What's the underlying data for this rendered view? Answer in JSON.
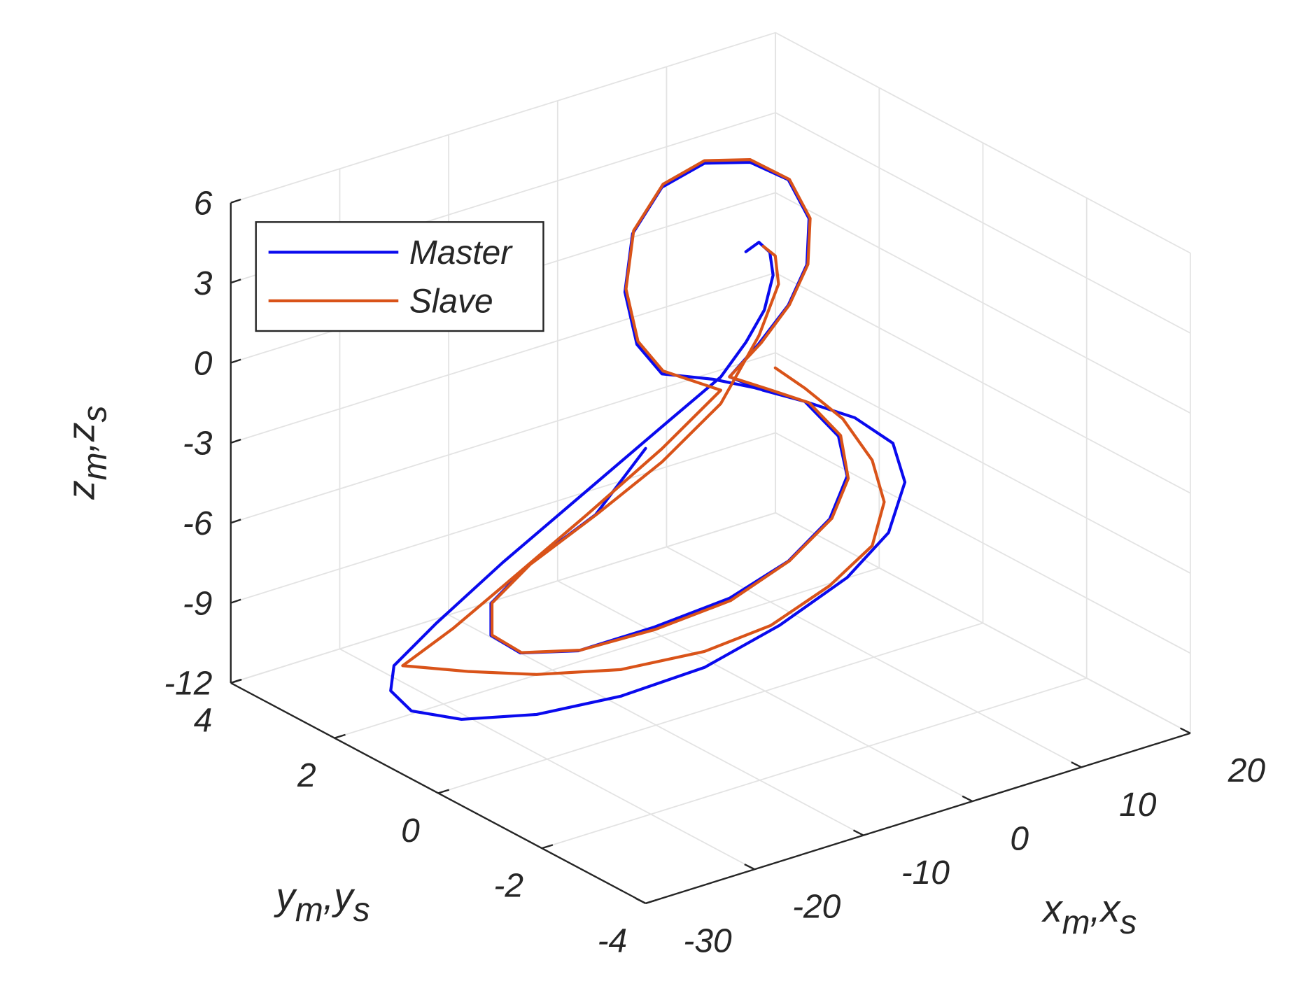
{
  "chart_data": {
    "type": "line3d",
    "xlabel": [
      "x",
      "m",
      ",x",
      "s"
    ],
    "ylabel": [
      "y",
      "m",
      ",y",
      "s"
    ],
    "zlabel": [
      "z",
      "m",
      ",z",
      "s"
    ],
    "xlim": [
      -30,
      20
    ],
    "ylim": [
      -4,
      4
    ],
    "zlim": [
      -12,
      6
    ],
    "xticks": [
      -30,
      -20,
      -10,
      0,
      10,
      20
    ],
    "yticks": [
      -4,
      -2,
      0,
      2,
      4
    ],
    "zticks": [
      -12,
      -9,
      -6,
      -3,
      0,
      3,
      6
    ],
    "grid": true,
    "legend": "top-left",
    "series": [
      {
        "name": "Master",
        "color": "#0a0aee",
        "x": [
          4.9,
          6.1,
          7.1,
          7.4,
          6.6,
          4.9,
          2.6,
          -2.0,
          -9.7,
          -17.4,
          -23.5,
          -27.4,
          -27.7,
          -25.8,
          -21.2,
          -14.3,
          -6.6,
          1.1,
          8.0,
          14.2,
          18.0,
          19.5,
          18.4,
          14.9,
          10.3,
          5.7,
          1.9,
          -2.8,
          -5.1,
          -6.2,
          -5.5,
          -2.8,
          1.1,
          5.3,
          8.8,
          10.7,
          10.5,
          8.8,
          6.1,
          3.4,
          6.5,
          10.3,
          13.4,
          14.2,
          12.6,
          8.8,
          3.4,
          -3.5,
          -10.5,
          -15.8,
          -18.5,
          -18.5,
          -15.1,
          -8.9,
          -4.3
        ],
        "y": [
          1.4,
          1.4,
          1.4,
          1.4,
          1.4,
          1.4,
          1.4,
          1.4,
          1.4,
          1.4,
          1.4,
          1.4,
          1.4,
          1.4,
          1.4,
          1.4,
          1.4,
          1.4,
          1.4,
          1.4,
          1.4,
          1.4,
          1.4,
          1.4,
          1.4,
          1.4,
          1.4,
          1.4,
          1.4,
          1.4,
          1.4,
          1.4,
          1.4,
          1.4,
          1.4,
          1.4,
          1.4,
          1.4,
          1.4,
          1.4,
          1.4,
          1.4,
          1.4,
          1.4,
          1.4,
          1.4,
          1.4,
          1.4,
          1.4,
          1.4,
          1.4,
          1.4,
          1.4,
          1.4,
          1.4
        ],
        "z": [
          2.4,
          2.6,
          2.1,
          1.2,
          0.0,
          -1.0,
          -2.0,
          -3.0,
          -4.7,
          -6.4,
          -7.9,
          -9.0,
          -9.9,
          -10.9,
          -11.8,
          -12.5,
          -12.8,
          -12.7,
          -12.0,
          -11.0,
          -9.8,
          -8.1,
          -6.5,
          -5.1,
          -3.9,
          -2.8,
          -2.0,
          -1.2,
          0.2,
          2.3,
          4.4,
          5.8,
          6.2,
          5.7,
          4.6,
          2.9,
          1.2,
          -0.1,
          -1.2,
          -2.1,
          -3.0,
          -3.9,
          -5.6,
          -7.2,
          -8.6,
          -9.7,
          -10.4,
          -10.6,
          -10.6,
          -10.0,
          -9.0,
          -7.8,
          -6.8,
          -5.7,
          -3.8
        ]
      },
      {
        "name": "Slave",
        "color": "#d95319",
        "x": [
          7.6,
          10.3,
          13.8,
          16.5,
          17.6,
          16.5,
          12.6,
          7.2,
          1.1,
          -6.6,
          -14.3,
          -20.5,
          -26.6,
          -22.0,
          -17.4,
          -9.7,
          -2.8,
          2.6,
          -2.7,
          -5.0,
          -6.1,
          -5.4,
          -2.7,
          1.1,
          5.3,
          8.9,
          10.8,
          10.6,
          8.9,
          6.3,
          3.4,
          6.9,
          10.7,
          13.6,
          14.3,
          12.8,
          8.9,
          3.5,
          -3.4,
          -10.3,
          -15.7,
          -18.4,
          -18.4,
          -14.9,
          -8.8,
          -2.8,
          2.6,
          6.1,
          7.9,
          7.6,
          6.5
        ],
        "y": [
          1.4,
          1.4,
          1.4,
          1.4,
          1.4,
          1.4,
          1.4,
          1.4,
          1.4,
          1.4,
          1.4,
          1.4,
          1.4,
          1.4,
          1.4,
          1.4,
          1.4,
          1.4,
          1.4,
          1.4,
          1.4,
          1.4,
          1.4,
          1.4,
          1.4,
          1.4,
          1.4,
          1.4,
          1.4,
          1.4,
          1.4,
          1.4,
          1.4,
          1.4,
          1.4,
          1.4,
          1.4,
          1.4,
          1.4,
          1.4,
          1.4,
          1.4,
          1.4,
          1.4,
          1.4,
          1.4,
          1.4,
          1.4,
          1.4,
          1.4,
          1.4
        ],
        "z": [
          -2.3,
          -3.4,
          -5.0,
          -6.9,
          -8.6,
          -10.1,
          -11.1,
          -11.9,
          -12.1,
          -11.8,
          -11.0,
          -10.1,
          -9.1,
          -8.3,
          -7.3,
          -5.6,
          -4.0,
          -2.5,
          -1.1,
          0.3,
          2.4,
          4.5,
          5.9,
          6.3,
          5.8,
          4.6,
          2.9,
          1.2,
          -0.1,
          -1.2,
          -2.1,
          -3.0,
          -4.0,
          -5.6,
          -7.3,
          -8.6,
          -9.7,
          -10.5,
          -10.7,
          -10.6,
          -10.0,
          -9.0,
          -7.8,
          -6.8,
          -5.7,
          -4.5,
          -3.0,
          -0.9,
          0.8,
          1.9,
          2.4
        ]
      }
    ]
  }
}
